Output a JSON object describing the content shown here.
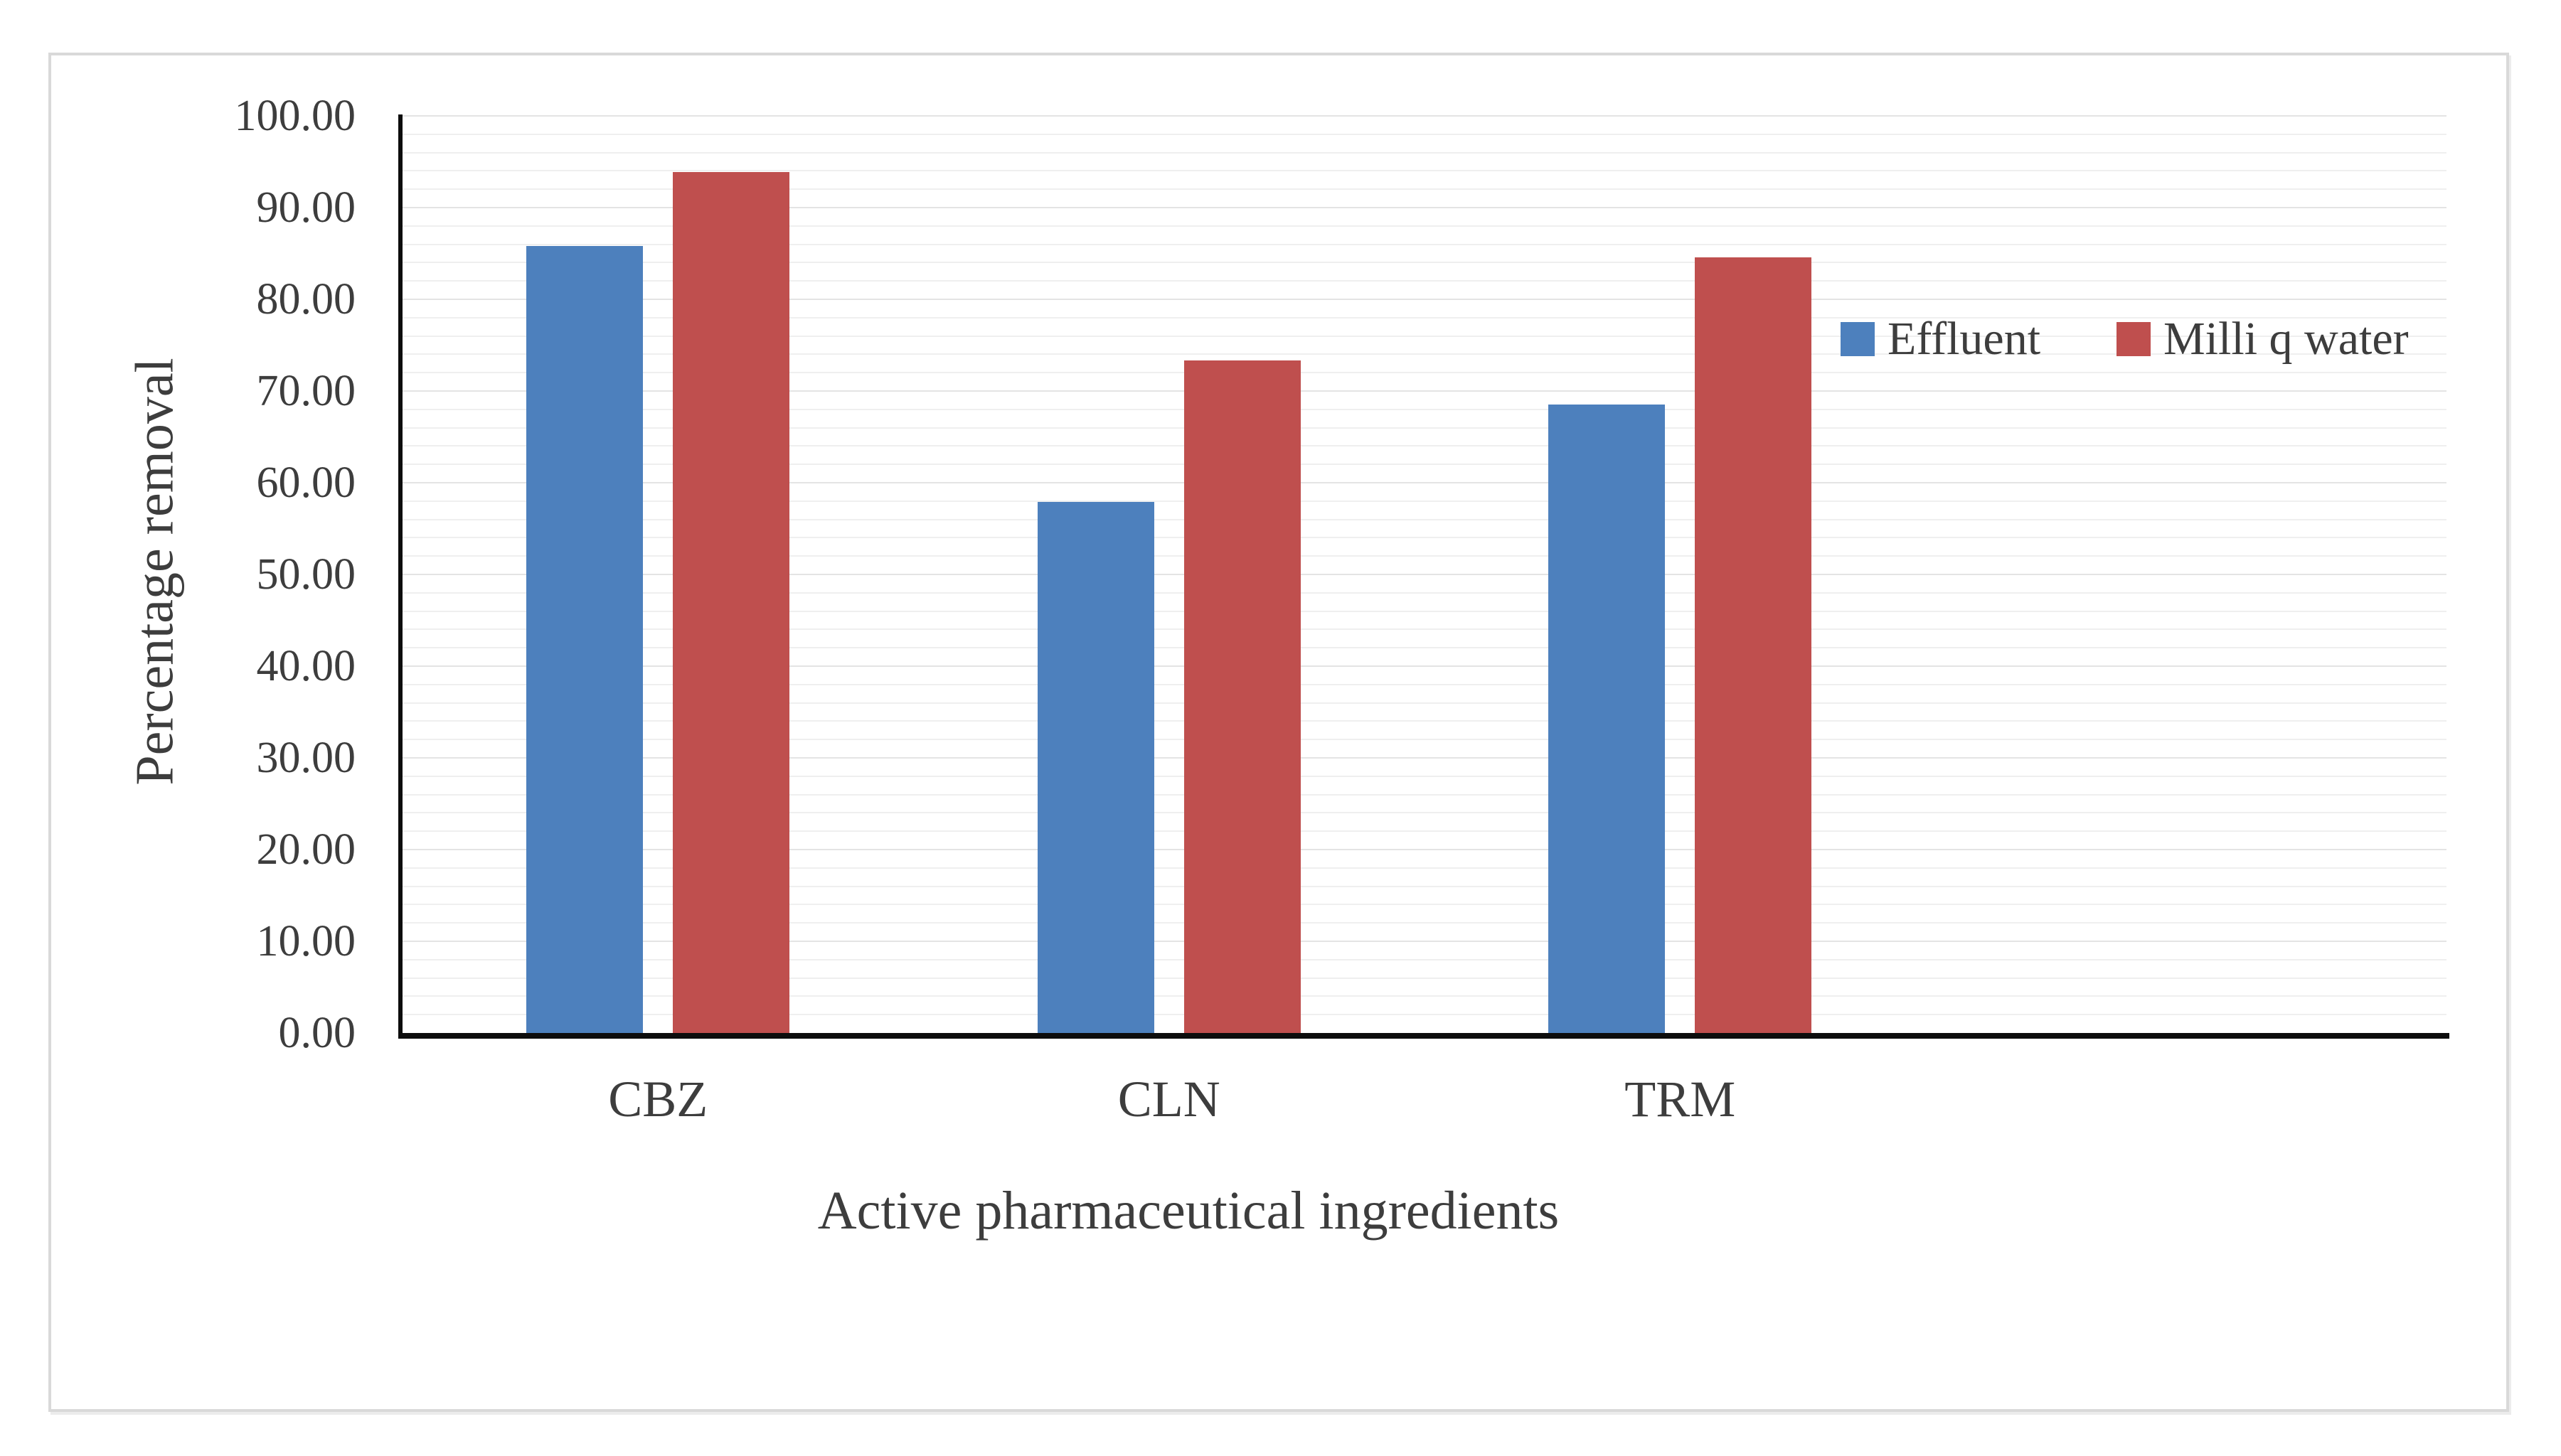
{
  "chart_data": {
    "type": "bar",
    "title": "",
    "categories": [
      "CBZ",
      "CLN",
      "TRM"
    ],
    "series": [
      {
        "name": "Effluent",
        "color": "#4d80bd",
        "values": [
          85.8,
          57.9,
          68.5
        ]
      },
      {
        "name": "Milli q water",
        "color": "#bf4f4e",
        "values": [
          93.9,
          73.3,
          84.6
        ]
      }
    ],
    "xlabel": "Active pharmaceutical ingredients",
    "ylabel": "Percentage removal",
    "ylim": [
      0,
      100
    ],
    "ytick_interval": 10,
    "ytick_labels": [
      "0.00",
      "10.00",
      "20.00",
      "30.00",
      "40.00",
      "50.00",
      "60.00",
      "70.00",
      "80.00",
      "90.00",
      "100.00"
    ],
    "minor_gridline_interval": 2,
    "grid": true,
    "legend": {
      "entries": [
        "Effluent",
        "Milli q water"
      ],
      "position": "inside-right"
    },
    "colors": {
      "axis": "#0d0d0d",
      "text": "#3d3d3d",
      "minor_gridline": "#efefef",
      "major_gridline": "#e4e4e4",
      "figure_border": "#d9d9d9",
      "background": "#ffffff"
    }
  }
}
